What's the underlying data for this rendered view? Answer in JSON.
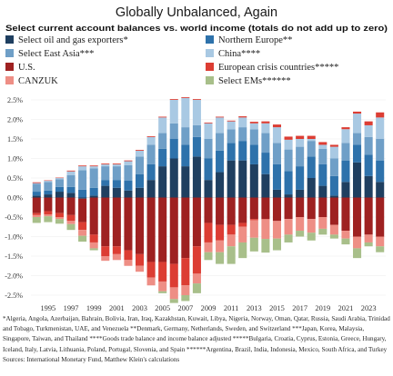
{
  "chart_data": {
    "type": "bar",
    "stacked": true,
    "title": "Globally Unbalanced, Again",
    "subtitle": "Select current account balances vs. world income (totals do not add up to zero)",
    "ylim": [
      -2.5,
      2.5
    ],
    "yticks": [
      "2.5%",
      "2.0%",
      "1.5%",
      "1.0%",
      "0.5%",
      "0.0%",
      "-0.5%",
      "-1.0%",
      "-1.5%",
      "-2.0%",
      "-2.5%"
    ],
    "ytick_values": [
      2.5,
      2.0,
      1.5,
      1.0,
      0.5,
      0.0,
      -0.5,
      -1.0,
      -1.5,
      -2.0,
      -2.5
    ],
    "xtick_labels": [
      "1995",
      "1997",
      "1999",
      "2001",
      "2003",
      "2005",
      "2007",
      "2009",
      "2011",
      "2013",
      "2015",
      "2017",
      "2019",
      "2021",
      "2023"
    ],
    "categories": [
      "1994",
      "1995",
      "1996",
      "1997",
      "1998",
      "1999",
      "2000",
      "2001",
      "2002",
      "2003",
      "2004",
      "2005",
      "2006",
      "2007",
      "2008",
      "2009",
      "2010",
      "2011",
      "2012",
      "2013",
      "2014",
      "2015",
      "2016",
      "2017",
      "2018",
      "2019",
      "2020",
      "2021",
      "2022",
      "2023",
      "2024"
    ],
    "legend": [
      {
        "name": "Select oil and gas exporters*",
        "color": "#1f3f60"
      },
      {
        "name": "Northern Europe**",
        "color": "#2e72ab"
      },
      {
        "name": "Select East Asia***",
        "color": "#6f9fc7"
      },
      {
        "name": "China****",
        "color": "#a9c9e3"
      },
      {
        "name": "U.S.",
        "color": "#9e2121"
      },
      {
        "name": "European crisis countries*****",
        "color": "#dc3d33"
      },
      {
        "name": "CANZUK",
        "color": "#ee8e85"
      },
      {
        "name": "Select EMs******",
        "color": "#a8bf8a"
      }
    ],
    "series": [
      {
        "name": "Select oil and gas exporters*",
        "color": "#1f3f60",
        "values": [
          0.05,
          0.08,
          0.15,
          0.12,
          -0.03,
          0.05,
          0.3,
          0.25,
          0.18,
          0.25,
          0.45,
          0.8,
          1.0,
          0.8,
          1.05,
          0.45,
          0.65,
          0.95,
          0.95,
          0.85,
          0.6,
          0.2,
          0.08,
          0.2,
          0.5,
          0.3,
          0.05,
          0.4,
          0.9,
          0.55,
          0.4
        ]
      },
      {
        "name": "Northern Europe**",
        "color": "#2e72ab",
        "values": [
          0.1,
          0.1,
          0.12,
          0.15,
          0.2,
          0.2,
          0.15,
          0.2,
          0.25,
          0.35,
          0.4,
          0.45,
          0.5,
          0.55,
          0.5,
          0.55,
          0.55,
          0.45,
          0.5,
          0.5,
          0.55,
          0.65,
          0.6,
          0.6,
          0.55,
          0.55,
          0.5,
          0.55,
          0.45,
          0.55,
          0.55
        ]
      },
      {
        "name": "Select East Asia***",
        "color": "#6f9fc7",
        "values": [
          0.2,
          0.22,
          0.2,
          0.3,
          0.5,
          0.5,
          0.35,
          0.35,
          0.4,
          0.45,
          0.5,
          0.4,
          0.4,
          0.45,
          0.3,
          0.5,
          0.45,
          0.35,
          0.35,
          0.4,
          0.5,
          0.55,
          0.55,
          0.5,
          0.4,
          0.4,
          0.45,
          0.45,
          0.3,
          0.45,
          0.55
        ]
      },
      {
        "name": "China****",
        "color": "#a9c9e3",
        "values": [
          0.02,
          0.03,
          0.03,
          0.1,
          0.1,
          0.05,
          0.05,
          0.05,
          0.1,
          0.15,
          0.2,
          0.4,
          0.6,
          0.75,
          0.65,
          0.4,
          0.4,
          0.2,
          0.25,
          0.15,
          0.25,
          0.4,
          0.25,
          0.2,
          0.05,
          0.1,
          0.3,
          0.35,
          0.5,
          0.3,
          0.55
        ]
      },
      {
        "name": "European crisis countries*****",
        "color": "#dc3d33",
        "values": [
          0.02,
          0.01,
          0.01,
          0.02,
          0.02,
          0.02,
          0.02,
          0.02,
          0.02,
          0.02,
          0.02,
          0.02,
          0.02,
          0.02,
          0.02,
          0.02,
          0.02,
          0.02,
          0.03,
          0.04,
          0.05,
          0.07,
          0.08,
          0.08,
          0.08,
          0.07,
          0.05,
          0.05,
          0.05,
          0.1,
          0.13
        ]
      },
      {
        "name": "U.S.",
        "color": "#9e2121",
        "values": [
          -0.4,
          -0.35,
          -0.4,
          -0.45,
          -0.6,
          -0.95,
          -1.25,
          -1.25,
          -1.35,
          -1.45,
          -1.65,
          -1.65,
          -1.7,
          -1.55,
          -1.25,
          -0.65,
          -0.7,
          -0.7,
          -0.65,
          -0.55,
          -0.55,
          -0.6,
          -0.55,
          -0.5,
          -0.55,
          -0.5,
          -0.7,
          -0.85,
          -1.0,
          -0.95,
          -1.0
        ]
      },
      {
        "name": "European crisis countries* (deficit)",
        "color": "#dc3d33",
        "values": [
          -0.05,
          -0.08,
          -0.1,
          -0.15,
          -0.2,
          -0.2,
          -0.25,
          -0.2,
          -0.25,
          -0.3,
          -0.4,
          -0.5,
          -0.6,
          -0.7,
          -0.7,
          -0.5,
          -0.4,
          -0.25,
          -0.1,
          -0.03,
          -0.01,
          0,
          0,
          0,
          0,
          0,
          0,
          0,
          0,
          0,
          0
        ]
      },
      {
        "name": "CANZUK",
        "color": "#ee8e85",
        "values": [
          -0.05,
          -0.05,
          -0.05,
          -0.08,
          -0.15,
          -0.15,
          -0.12,
          -0.15,
          -0.15,
          -0.15,
          -0.2,
          -0.25,
          -0.3,
          -0.25,
          -0.25,
          -0.25,
          -0.3,
          -0.3,
          -0.4,
          -0.45,
          -0.5,
          -0.45,
          -0.4,
          -0.35,
          -0.35,
          -0.3,
          -0.25,
          -0.2,
          -0.3,
          -0.2,
          -0.25
        ]
      },
      {
        "name": "Select EMs******",
        "color": "#a8bf8a",
        "values": [
          -0.15,
          -0.15,
          -0.12,
          -0.15,
          -0.15,
          -0.05,
          0,
          0,
          0,
          0,
          0,
          -0.05,
          -0.1,
          -0.15,
          -0.25,
          -0.2,
          -0.3,
          -0.45,
          -0.4,
          -0.35,
          -0.35,
          -0.3,
          -0.2,
          -0.15,
          -0.2,
          -0.15,
          -0.1,
          -0.15,
          -0.25,
          -0.1,
          -0.15
        ]
      }
    ]
  },
  "footnote": "*Algeria, Angola, Azerbaijan, Bahrain, Bolivia, Iran, Iraq, Kazakhstan, Kuwait, Libya, Nigeria, Norway, Oman, Qatar, Russia, Saudi Arabia, Trinidad and Tobago, Turkmenistan, UAE, and Venezuela  **Denmark, Germany, Netherlands, Sweden, and Switzerland  ***Japan, Korea, Malaysia, Singapore, Taiwan, and Thailand  ****Goods trade balance and income balance adjusted  *****Bulgaria, Croatia, Cyprus, Estonia, Greece, Hungary, Iceland, Italy, Latvia, Lithuania, Poland, Portugal, Slovenia, and Spain  ******Argentina, Brazil, India, Indonesia, Mexico, South Africa, and Turkey  Sources: International Monetary Fund, Matthew Klein's calculations"
}
